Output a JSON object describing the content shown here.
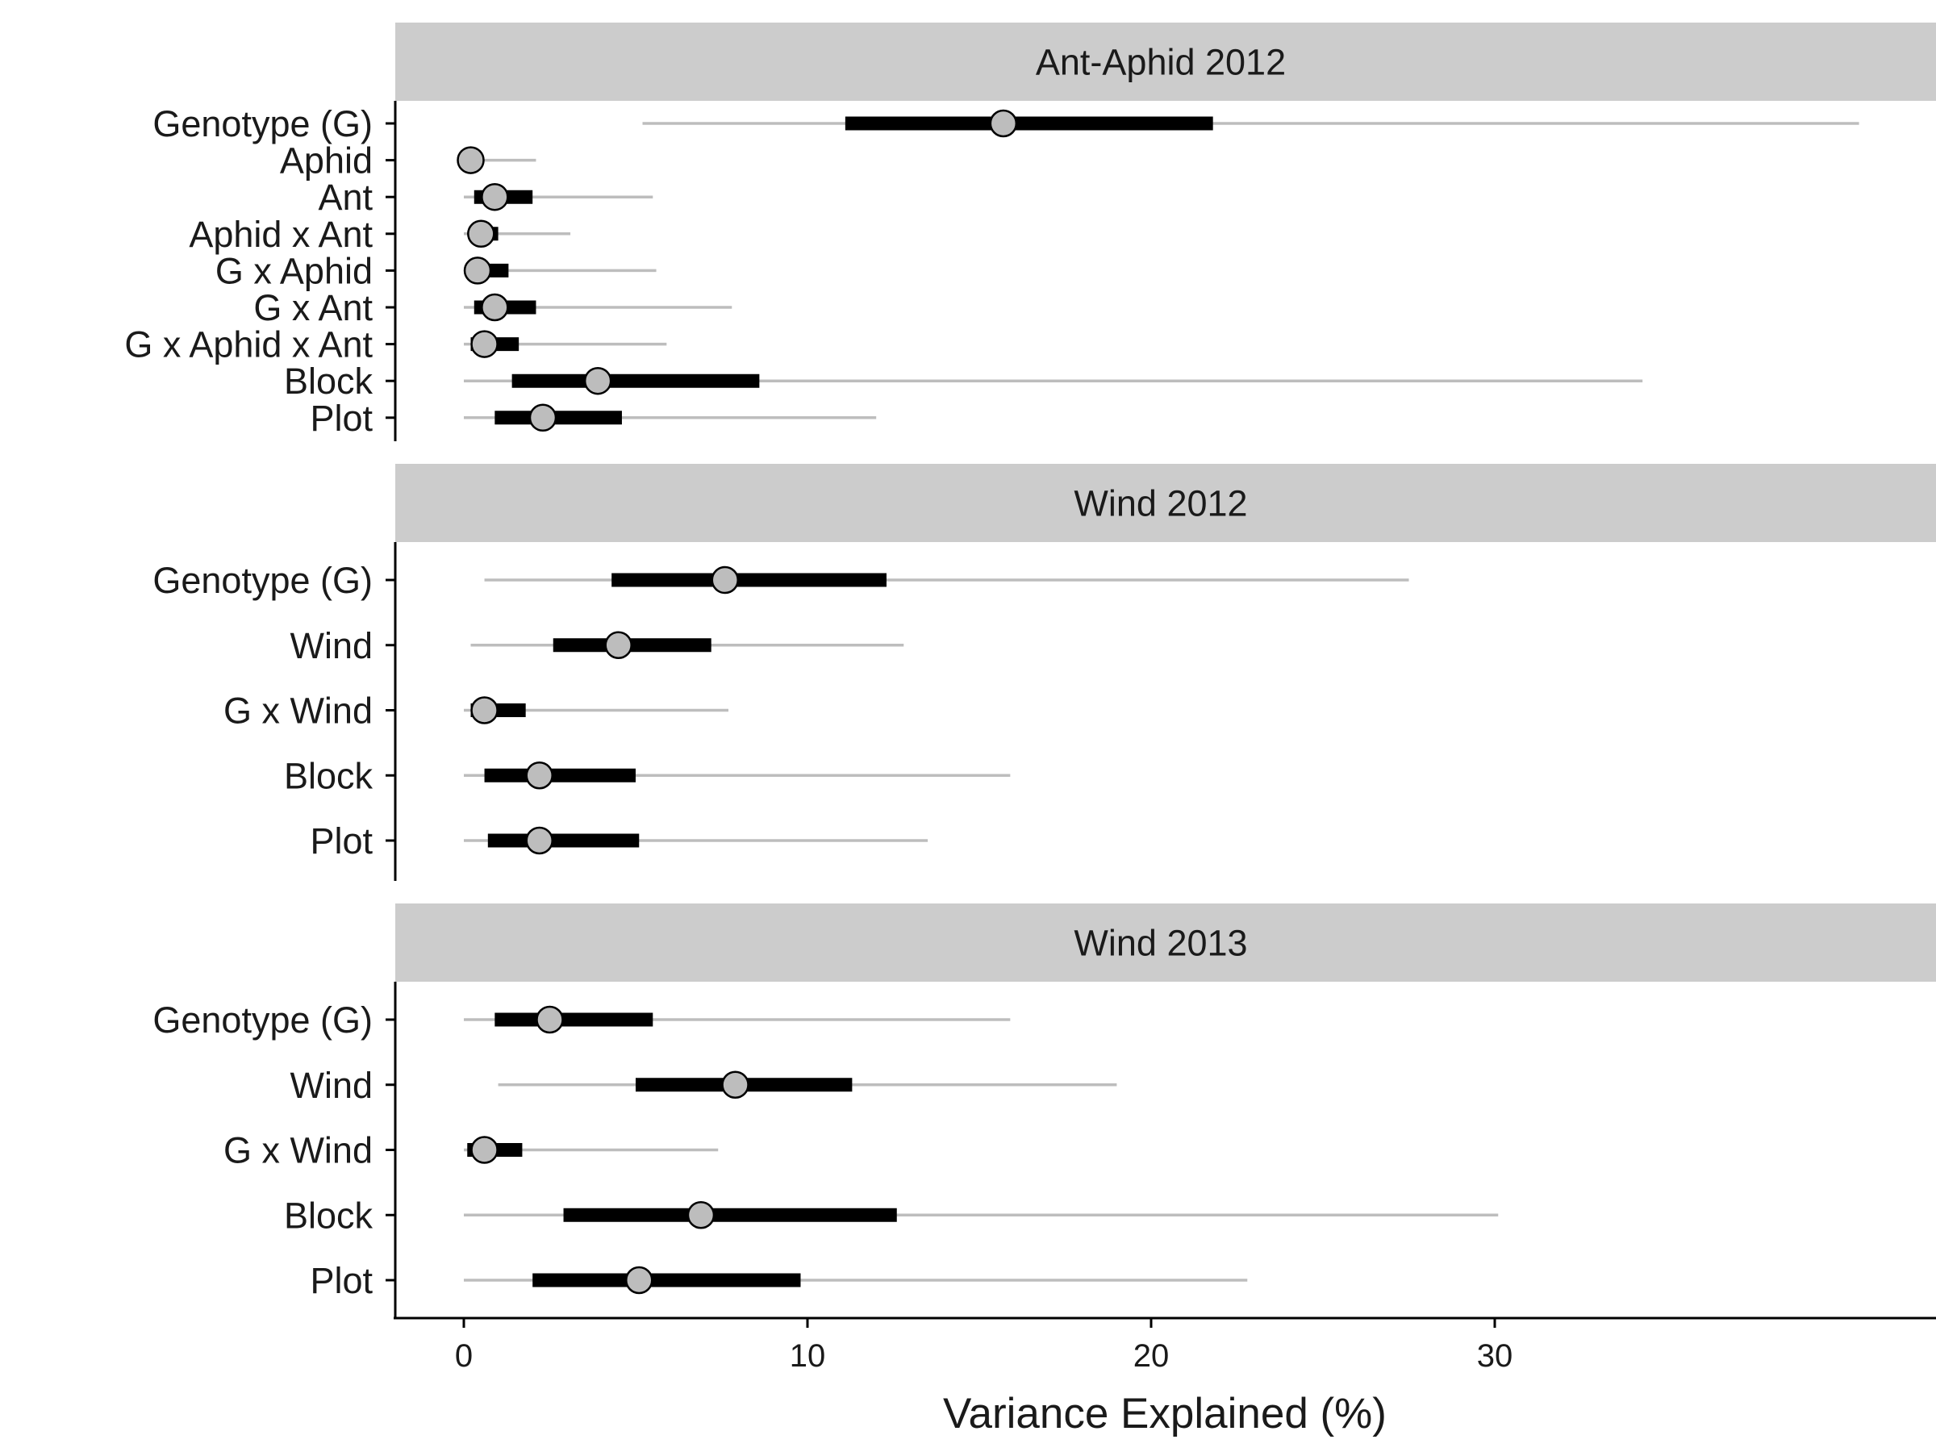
{
  "chart_data": {
    "type": "interval",
    "xlabel": "Variance Explained (%)",
    "xlim": [
      -2,
      42.7
    ],
    "xticks": [
      0,
      10,
      20,
      30
    ],
    "grid": false,
    "colors": {
      "point_fill": "#bdbdbd",
      "inner_interval": "#000000",
      "outer_interval": "#bdbdbd",
      "strip_background": "#cccccc"
    },
    "panels": [
      {
        "title": "Ant-Aphid 2012",
        "terms": [
          {
            "label": "Genotype (G)",
            "median": 15.7,
            "inner": [
              11.1,
              21.8
            ],
            "outer": [
              5.2,
              40.6
            ]
          },
          {
            "label": "Aphid",
            "median": 0.2,
            "inner": [
              0.05,
              0.4
            ],
            "outer": [
              0.0,
              2.1
            ]
          },
          {
            "label": "Ant",
            "median": 0.9,
            "inner": [
              0.3,
              2.0
            ],
            "outer": [
              0.0,
              5.5
            ]
          },
          {
            "label": "Aphid x Ant",
            "median": 0.5,
            "inner": [
              0.2,
              1.0
            ],
            "outer": [
              0.0,
              3.1
            ]
          },
          {
            "label": "G x Aphid",
            "median": 0.4,
            "inner": [
              0.1,
              1.3
            ],
            "outer": [
              0.0,
              5.6
            ]
          },
          {
            "label": "G x Ant",
            "median": 0.9,
            "inner": [
              0.3,
              2.1
            ],
            "outer": [
              0.0,
              7.8
            ]
          },
          {
            "label": "G x Aphid x Ant",
            "median": 0.6,
            "inner": [
              0.2,
              1.6
            ],
            "outer": [
              0.0,
              5.9
            ]
          },
          {
            "label": "Block",
            "median": 3.9,
            "inner": [
              1.4,
              8.6
            ],
            "outer": [
              0.0,
              34.3
            ]
          },
          {
            "label": "Plot",
            "median": 2.3,
            "inner": [
              0.9,
              4.6
            ],
            "outer": [
              0.0,
              12.0
            ]
          }
        ]
      },
      {
        "title": "Wind 2012",
        "terms": [
          {
            "label": "Genotype (G)",
            "median": 7.6,
            "inner": [
              4.3,
              12.3
            ],
            "outer": [
              0.6,
              27.5
            ]
          },
          {
            "label": "Wind",
            "median": 4.5,
            "inner": [
              2.6,
              7.2
            ],
            "outer": [
              0.2,
              12.8
            ]
          },
          {
            "label": "G x Wind",
            "median": 0.6,
            "inner": [
              0.2,
              1.8
            ],
            "outer": [
              0.0,
              7.7
            ]
          },
          {
            "label": "Block",
            "median": 2.2,
            "inner": [
              0.6,
              5.0
            ],
            "outer": [
              0.0,
              15.9
            ]
          },
          {
            "label": "Plot",
            "median": 2.2,
            "inner": [
              0.7,
              5.1
            ],
            "outer": [
              0.0,
              13.5
            ]
          }
        ]
      },
      {
        "title": "Wind 2013",
        "terms": [
          {
            "label": "Genotype (G)",
            "median": 2.5,
            "inner": [
              0.9,
              5.5
            ],
            "outer": [
              0.0,
              15.9
            ]
          },
          {
            "label": "Wind",
            "median": 7.9,
            "inner": [
              5.0,
              11.3
            ],
            "outer": [
              1.0,
              19.0
            ]
          },
          {
            "label": "G x Wind",
            "median": 0.6,
            "inner": [
              0.1,
              1.7
            ],
            "outer": [
              0.0,
              7.4
            ]
          },
          {
            "label": "Block",
            "median": 6.9,
            "inner": [
              2.9,
              12.6
            ],
            "outer": [
              0.0,
              30.1
            ]
          },
          {
            "label": "Plot",
            "median": 5.1,
            "inner": [
              2.0,
              9.8
            ],
            "outer": [
              0.0,
              22.8
            ]
          }
        ]
      }
    ]
  }
}
